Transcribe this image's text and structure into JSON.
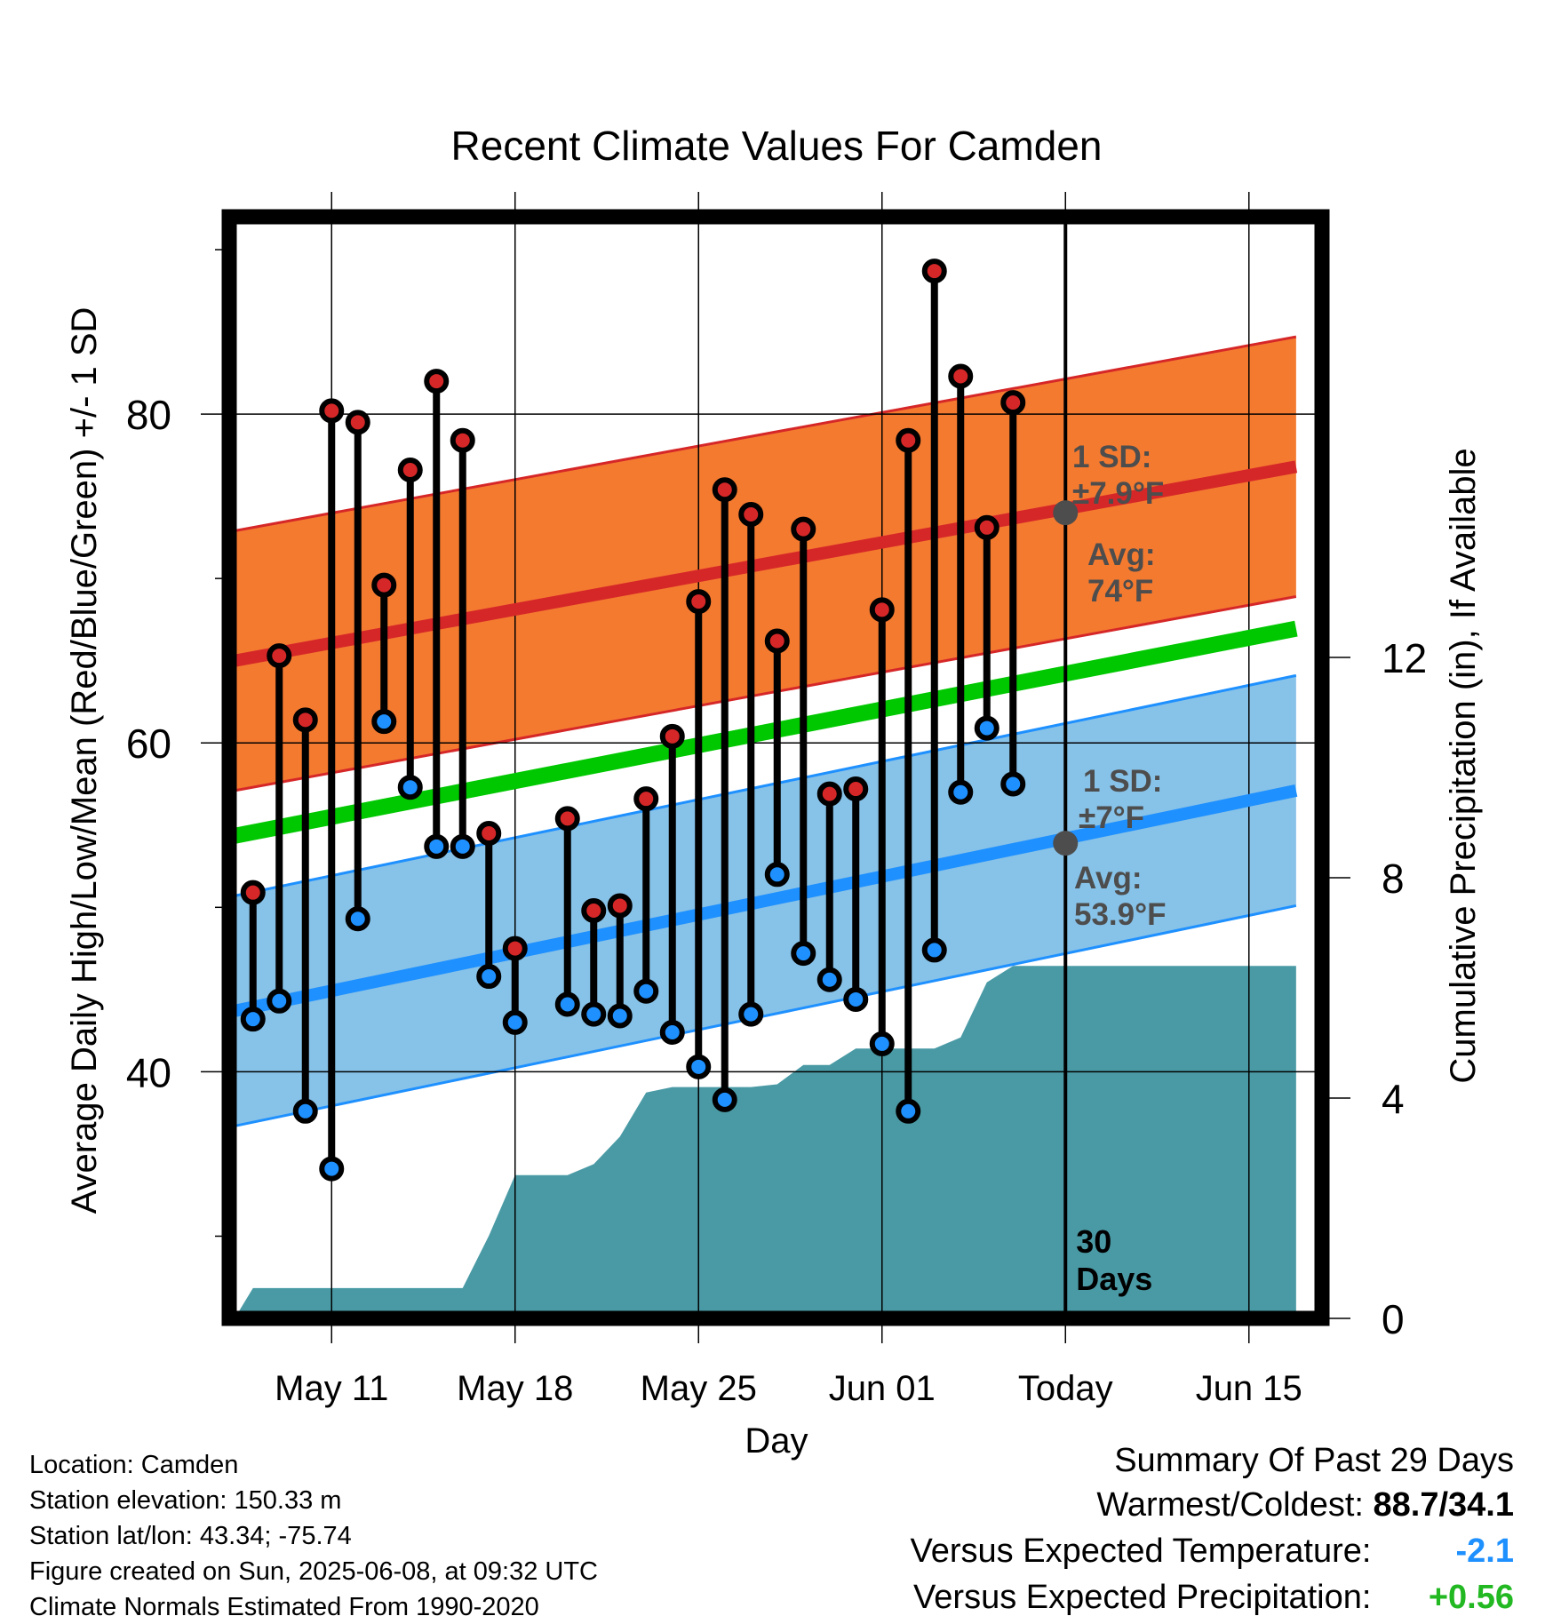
{
  "chart_data": {
    "type": "line",
    "title": "Recent Climate Values For Camden",
    "xlabel": "Day",
    "ylabel": "Average Daily High/Low/Mean (Red/Blue/Green) +/- 1 SD",
    "y2label": "Cumulative Precipitation (in), If Available",
    "x_ticks": [
      "May 11",
      "May 18",
      "May 25",
      "Jun 01",
      "Today",
      "Jun 15"
    ],
    "x_tick_days": [
      11,
      18,
      25,
      32,
      39,
      46
    ],
    "x_range": [
      7.3,
      47.8
    ],
    "ylim": [
      25,
      92
    ],
    "y_ticks": [
      40,
      60,
      80
    ],
    "y2lim": [
      0,
      20
    ],
    "y2_ticks": [
      0,
      4,
      8,
      12
    ],
    "today_day": 39,
    "today_label": "30\nDays",
    "daily": {
      "day": [
        8,
        9,
        10,
        11,
        12,
        13,
        14,
        15,
        16,
        17,
        18,
        19,
        20,
        21,
        22,
        23,
        24,
        25,
        26,
        27,
        28,
        29,
        30,
        31,
        32,
        33,
        34,
        35,
        36,
        37,
        38
      ],
      "high": [
        50.9,
        65.3,
        61.4,
        80.2,
        79.5,
        69.6,
        76.6,
        82.0,
        78.4,
        54.5,
        47.5,
        null,
        55.4,
        49.8,
        50.1,
        56.6,
        60.4,
        68.6,
        75.4,
        73.9,
        66.2,
        73.0,
        56.9,
        57.2,
        68.1,
        78.4,
        88.7,
        82.3,
        73.1,
        80.7,
        null
      ],
      "low": [
        43.2,
        44.3,
        37.6,
        34.1,
        49.3,
        61.3,
        57.3,
        53.7,
        53.7,
        45.8,
        43.0,
        null,
        44.1,
        43.5,
        43.4,
        44.9,
        42.4,
        40.3,
        38.3,
        43.5,
        52.0,
        47.2,
        45.6,
        44.4,
        41.7,
        37.6,
        47.4,
        57.0,
        60.9,
        57.5,
        null
      ]
    },
    "normals": {
      "high_avg": [
        65.0,
        76.8
      ],
      "high_sd": 7.9,
      "low_avg": [
        43.7,
        57.1
      ],
      "low_sd": 7.0,
      "mean_avg": [
        54.35,
        66.95
      ],
      "day_range": [
        7.3,
        47.8
      ]
    },
    "precip": {
      "day": [
        7.3,
        8,
        11,
        12,
        13,
        14,
        15,
        16,
        17,
        18,
        19,
        20,
        21,
        22,
        23,
        24,
        25,
        26,
        27,
        28,
        29,
        30,
        31,
        32,
        33,
        34,
        35,
        36,
        37,
        38,
        39,
        47.8
      ],
      "cum": [
        0,
        0.55,
        0.55,
        0.55,
        0.55,
        0.55,
        0.55,
        0.55,
        1.5,
        2.6,
        2.6,
        2.6,
        2.8,
        3.3,
        4.1,
        4.2,
        4.2,
        4.2,
        4.2,
        4.25,
        4.6,
        4.6,
        4.9,
        4.9,
        4.9,
        4.9,
        5.1,
        6.1,
        6.4,
        6.4,
        6.4,
        6.4
      ]
    },
    "annotations": {
      "high_sd": {
        "title": "1 SD:",
        "value": "±7.9°F"
      },
      "high_avg": {
        "title": "Avg:",
        "value": "74°F",
        "y": 74.0
      },
      "low_sd": {
        "title": "1 SD:",
        "value": "±7°F"
      },
      "low_avg": {
        "title": "Avg:",
        "value": "53.9°F",
        "y": 53.9
      }
    },
    "colors": {
      "high": "#d62728",
      "low": "#1e90ff",
      "mean": "#00c800",
      "high_band": "#f47a30",
      "low_band": "#87c2e8",
      "precip": "#4a9aa5",
      "annotation": "#4d4d4d"
    },
    "grid": true
  },
  "info": {
    "location": "Location: Camden",
    "elevation": "Station elevation: 150.33 m",
    "latlon": "Station lat/lon: 43.34; -75.74",
    "created": "Figure created on Sun, 2025-06-08, at 09:32 UTC",
    "normals": "Climate Normals Estimated From 1990-2020"
  },
  "summary": {
    "title": "Summary Of Past 29 Days",
    "warmest_label": "Warmest/Coldest:",
    "warmest_value": "88.7/34.1",
    "temp_label": "Versus Expected Temperature:",
    "temp_value": "-2.1",
    "temp_color": "#1e90ff",
    "precip_label": "Versus Expected Precipitation:",
    "precip_value": "+0.56",
    "precip_color": "#22b822"
  }
}
